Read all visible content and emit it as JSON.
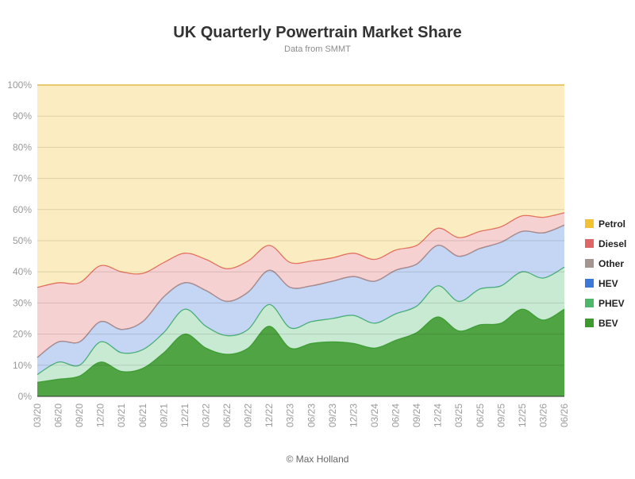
{
  "title": "UK Quarterly Powertrain Market Share",
  "subtitle": "Data from SMMT",
  "credit": "© Max Holland",
  "chart_data": {
    "type": "area",
    "stacked": true,
    "title": "UK Quarterly Powertrain Market Share",
    "subtitle": "Data from SMMT",
    "xlabel": "",
    "ylabel": "",
    "ylim": [
      0,
      100
    ],
    "yticks": [
      "0%",
      "10%",
      "20%",
      "30%",
      "40%",
      "50%",
      "60%",
      "70%",
      "80%",
      "90%",
      "100%"
    ],
    "grid": true,
    "legend": "right",
    "x": [
      "03/20",
      "06/20",
      "09/20",
      "12/20",
      "03/21",
      "06/21",
      "09/21",
      "12/21",
      "03/22",
      "06/22",
      "09/22",
      "12/22",
      "03/23",
      "06/23",
      "09/23",
      "12/23",
      "03/24",
      "06/24",
      "09/24",
      "12/24",
      "03/25",
      "06/25",
      "09/25",
      "12/25",
      "03/26",
      "06/26"
    ],
    "series": [
      {
        "name": "BEV",
        "color": "#3d9a2f",
        "values": [
          4.5,
          5.5,
          6.5,
          11,
          8,
          9,
          14,
          20,
          15.5,
          13.5,
          15.5,
          22.5,
          15.5,
          17,
          17.5,
          17,
          15.5,
          18,
          20.5,
          25.5,
          21,
          23,
          23.5,
          28,
          24.5,
          28
        ]
      },
      {
        "name": "PHEV",
        "color": "#4db86a",
        "values": [
          2.5,
          5.5,
          3.5,
          6.5,
          6,
          6,
          6.5,
          8,
          7,
          6,
          6,
          7,
          6.5,
          7,
          7.5,
          9,
          8,
          8.5,
          8.5,
          10,
          9.5,
          11.5,
          12,
          12,
          13.5,
          13.5
        ]
      },
      {
        "name": "HEV",
        "color": "#3b78d8",
        "values": [
          5.5,
          6.5,
          7.5,
          6.5,
          7.5,
          9,
          11.5,
          8.5,
          11.5,
          11,
          12,
          11,
          13,
          11.5,
          12,
          12.5,
          13.5,
          14,
          13.5,
          13,
          14.5,
          13,
          14,
          13,
          14.5,
          13.5
        ]
      },
      {
        "name": "Other",
        "color": "#a59590",
        "values": [
          0,
          0,
          0,
          0,
          0,
          0,
          0,
          0,
          0,
          0,
          0,
          0,
          0,
          0,
          0,
          0,
          0,
          0,
          0,
          0,
          0,
          0,
          0,
          0,
          0,
          0
        ]
      },
      {
        "name": "Diesel",
        "color": "#e06666",
        "values": [
          22.5,
          19,
          19,
          18,
          18.5,
          15.5,
          11,
          9.5,
          10,
          10.5,
          10,
          8,
          8,
          8,
          7.5,
          7.5,
          7,
          6.5,
          6,
          5.5,
          6,
          5.5,
          5,
          5,
          5,
          4
        ]
      },
      {
        "name": "Petrol",
        "color": "#f1c232",
        "values": [
          65,
          63.5,
          63.5,
          58,
          60,
          60.5,
          57,
          54,
          56,
          59,
          56.5,
          51.5,
          57,
          56.5,
          55.5,
          54,
          56,
          53,
          51.5,
          46,
          49,
          47,
          45.5,
          42,
          42.5,
          41
        ]
      }
    ]
  }
}
